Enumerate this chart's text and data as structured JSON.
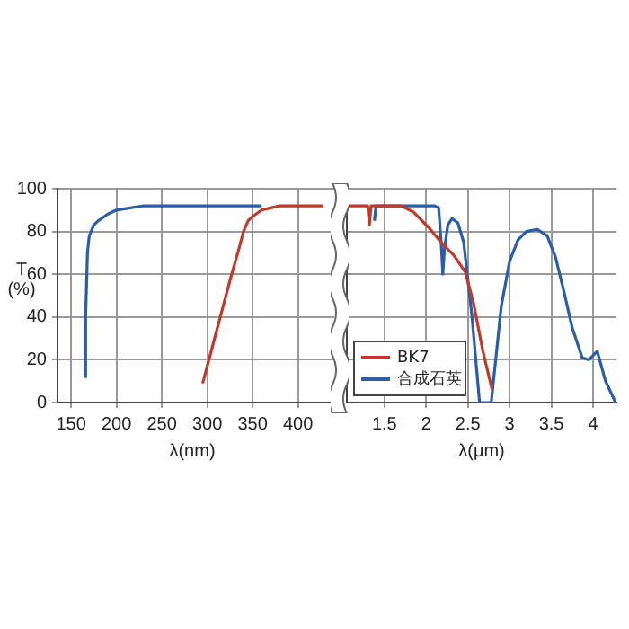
{
  "chart_data": [
    {
      "type": "line",
      "xlabel": "λ(nm)",
      "ylabel": "T (%)",
      "xlim": [
        135,
        440
      ],
      "xticks": [
        150,
        200,
        250,
        300,
        350,
        400
      ],
      "ylim": [
        0,
        100
      ],
      "yticks": [
        0,
        20,
        40,
        60,
        80,
        100
      ],
      "grid": true,
      "legend": false,
      "marker": "none",
      "line_style": "solid",
      "series": [
        {
          "color": "#c0392b",
          "x": [
            295,
            305,
            315,
            325,
            335,
            340,
            345,
            350,
            360,
            370,
            380,
            390,
            428
          ],
          "values": [
            9,
            25,
            41,
            57,
            72,
            80,
            85,
            87,
            90,
            91,
            92,
            92,
            92
          ]
        },
        {
          "color": "#2a5ea8",
          "x": [
            165,
            166,
            168,
            170,
            172,
            175,
            180,
            190,
            200,
            215,
            230,
            300,
            360
          ],
          "values": [
            12,
            40,
            70,
            78,
            80,
            83,
            85,
            88,
            90,
            91,
            92,
            92,
            92
          ]
        }
      ]
    },
    {
      "type": "line",
      "xlabel": "λ(μm)",
      "xlim": [
        1.05,
        4.28
      ],
      "xticks": [
        1.5,
        2.0,
        2.5,
        3.0,
        3.5,
        4.0
      ],
      "ylim": [
        0,
        100
      ],
      "yticks": [
        0,
        20,
        40,
        60,
        80,
        100
      ],
      "grid": true,
      "tick_labels": "x",
      "legend": "bottom left",
      "marker": "none",
      "line_style": "solid",
      "series": [
        {
          "name": "BK7",
          "color": "#c0392b",
          "x": [
            1.05,
            1.3,
            1.32,
            1.34,
            1.36,
            1.5,
            1.7,
            1.85,
            2.05,
            2.2,
            2.33,
            2.47,
            2.57,
            2.68,
            2.79
          ],
          "values": [
            92,
            92,
            83,
            92,
            92,
            92,
            92,
            89,
            81,
            74,
            69,
            61,
            46,
            24,
            6
          ]
        },
        {
          "name": "合成石英",
          "color": "#2a5ea8",
          "x": [
            1.38,
            1.4,
            1.5,
            1.8,
            2.1,
            2.15,
            2.18,
            2.2,
            2.22,
            2.26,
            2.31,
            2.38,
            2.45,
            2.55,
            2.64,
            2.78,
            2.9,
            3.0,
            3.1,
            3.2,
            3.33,
            3.45,
            3.55,
            3.65,
            3.75,
            3.87,
            3.95,
            4.05,
            4.15,
            4.27
          ],
          "values": [
            85,
            92,
            92,
            92,
            92,
            91,
            75,
            60,
            72,
            83,
            86,
            84,
            75,
            40,
            0,
            0,
            45,
            66,
            76,
            80,
            81,
            78,
            68,
            52,
            35,
            21,
            20,
            24,
            10,
            0
          ]
        }
      ]
    }
  ]
}
